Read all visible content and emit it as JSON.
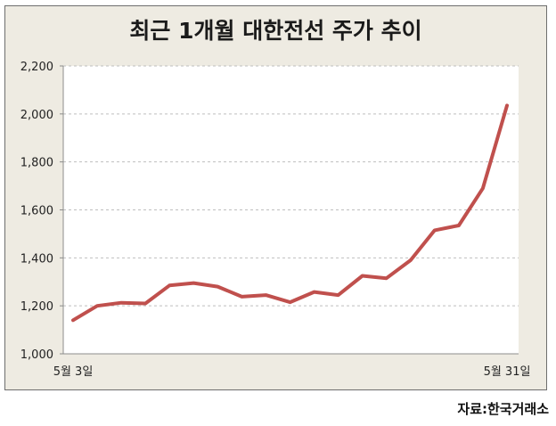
{
  "chart_data": {
    "type": "line",
    "title": "최근 1개월 대한전선 주가 추이",
    "xlabel": "",
    "ylabel": "",
    "x_tick_labels": [
      "5월 3일",
      "5월 31일"
    ],
    "y_ticks": [
      "1,000",
      "1,200",
      "1,400",
      "1,600",
      "1,800",
      "2,000",
      "2,200"
    ],
    "y_tick_values": [
      1000,
      1200,
      1400,
      1600,
      1800,
      2000,
      2200
    ],
    "ylim": [
      1000,
      2200
    ],
    "grid": true,
    "series": [
      {
        "color": "#c0504d",
        "values": [
          1140,
          1200,
          1213,
          1210,
          1285,
          1295,
          1280,
          1238,
          1245,
          1215,
          1258,
          1245,
          1325,
          1315,
          1390,
          1515,
          1535,
          1690,
          2035
        ]
      }
    ]
  },
  "source": "자료:한국거래소",
  "colors": {
    "background": "#eeebe2",
    "plot": "#ffffff",
    "line": "#c0504d",
    "grid": "#bfbfbf"
  }
}
